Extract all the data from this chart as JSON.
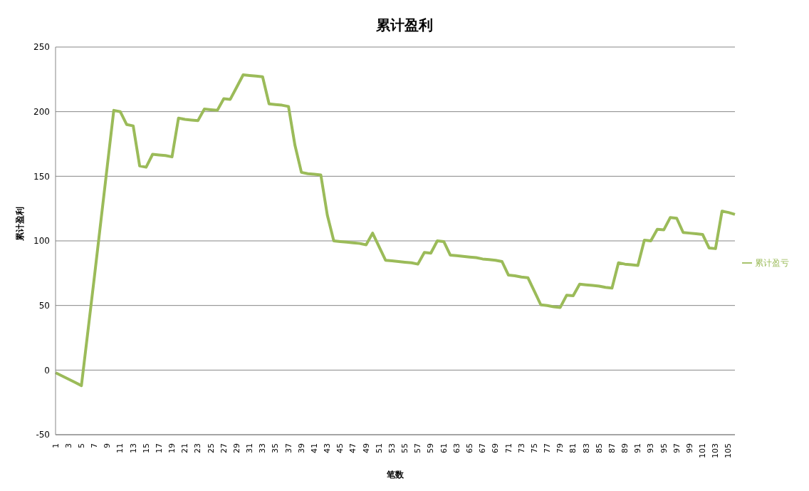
{
  "chart_data": {
    "type": "line",
    "title": "累计盈利",
    "xlabel": "笔数",
    "ylabel": "累计盈利",
    "categories": [
      "1",
      null,
      "3",
      null,
      "5",
      null,
      "7",
      null,
      "9",
      null,
      "11",
      null,
      "13",
      null,
      "15",
      null,
      "17",
      null,
      "19",
      null,
      "21",
      null,
      "23",
      null,
      "25",
      null,
      "27",
      null,
      "29",
      null,
      "31",
      null,
      "33",
      null,
      "35",
      null,
      "37",
      null,
      "39",
      null,
      "41",
      null,
      "43",
      null,
      "45",
      null,
      "47",
      null,
      "49",
      null,
      "51",
      null,
      "53",
      null,
      "55",
      null,
      "57",
      null,
      "59",
      null,
      "61",
      null,
      "63",
      null,
      "65",
      null,
      "67",
      null,
      "69",
      null,
      "71",
      null,
      "73",
      null,
      "75",
      null,
      "77",
      null,
      "79",
      null,
      "81",
      null,
      "83",
      null,
      "85",
      null,
      "87",
      null,
      "89",
      null,
      "91",
      null,
      "93",
      null,
      "95",
      null,
      "97",
      null,
      "99",
      null,
      "101",
      null,
      "103",
      null,
      "105",
      null
    ],
    "series": [
      {
        "name": "累计盈亏",
        "color": "#9bbb59",
        "values": [
          -2,
          -4.5,
          -7,
          -9.5,
          -12,
          30,
          72,
          115,
          158,
          201,
          200,
          190,
          189,
          158,
          157,
          167,
          166.5,
          166,
          165,
          195,
          194,
          193.5,
          193,
          202,
          201.5,
          201,
          210,
          209.5,
          219,
          228.5,
          228,
          227.5,
          227,
          206,
          205.5,
          205,
          204,
          174,
          153,
          152,
          151.5,
          151,
          120,
          100,
          99.5,
          99,
          98.5,
          98,
          97,
          106,
          95.5,
          85,
          84.5,
          84,
          83.5,
          83,
          82,
          91,
          90.5,
          100,
          99.5,
          89,
          88.5,
          88,
          87.5,
          87,
          86,
          85.5,
          85,
          84,
          73.5,
          73,
          72,
          71.5,
          61,
          50.5,
          50,
          49,
          48.5,
          58,
          57.5,
          66.5,
          66,
          65.5,
          65,
          64,
          63.5,
          83,
          82,
          81.5,
          81,
          100.5,
          100,
          109,
          108.5,
          118,
          117.5,
          106.5,
          106,
          105.5,
          105,
          94.5,
          94,
          123,
          122,
          120.5
        ]
      }
    ],
    "ylim": [
      -50,
      250
    ],
    "yticks": [
      -50,
      0,
      50,
      100,
      150,
      200,
      250
    ],
    "grid": "y",
    "legend": "right",
    "marker": "none",
    "line_style": "solid"
  }
}
